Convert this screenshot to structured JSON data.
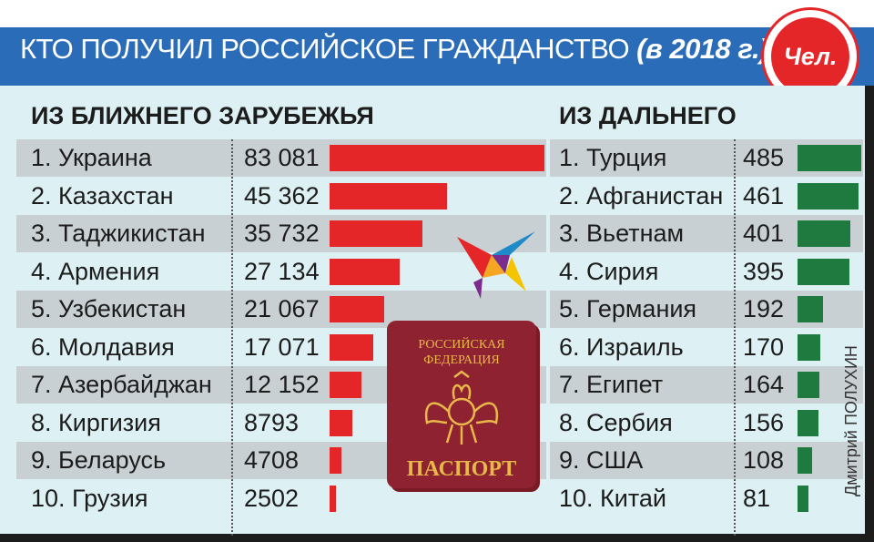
{
  "header": {
    "title_main": "КТО ПОЛУЧИЛ РОССИЙСКОЕ ГРАЖДАНСТВО ",
    "title_year": "(в 2018 г.)",
    "unit_badge": "Чел."
  },
  "colors": {
    "header_bg": "#2a6cb8",
    "near_bar": "#e52629",
    "far_bar": "#1e7a3e",
    "panel_bg": "#ddf0f4",
    "stripe": "#c9d0d4"
  },
  "passport": {
    "line1": "РОССИЙСКАЯ",
    "line2": "ФЕДЕРАЦИЯ",
    "label": "ПАСПОРТ"
  },
  "credit": "Дмитрий ПОЛУХИН",
  "chart_data": [
    {
      "type": "bar",
      "title": "ИЗ БЛИЖНЕГО ЗАРУБЕЖЬЯ",
      "categories": [
        "1. Украина",
        "2. Казахстан",
        "3. Таджикистан",
        "4. Армения",
        "5. Узбекистан",
        "6. Молдавия",
        "7. Азербайджан",
        "8. Киргизия",
        "9. Беларусь",
        "10. Грузия"
      ],
      "values": [
        83081,
        45362,
        35732,
        27134,
        21067,
        17071,
        12152,
        8793,
        4708,
        2502
      ],
      "value_labels": [
        "83 081",
        "45 362",
        "35 732",
        "27 134",
        "21 067",
        "17 071",
        "12 152",
        "8793",
        "4708",
        "2502"
      ],
      "orientation": "horizontal"
    },
    {
      "type": "bar",
      "title": "ИЗ ДАЛЬНЕГО",
      "categories": [
        "1. Турция",
        "2. Афганистан",
        "3. Вьетнам",
        "4. Сирия",
        "5. Германия",
        "6. Израиль",
        "7. Египет",
        "8. Сербия",
        "9. США",
        "10. Китай"
      ],
      "values": [
        485,
        461,
        401,
        395,
        192,
        170,
        164,
        156,
        108,
        81
      ],
      "value_labels": [
        "485",
        "461",
        "401",
        "395",
        "192",
        "170",
        "164",
        "156",
        "108",
        "81"
      ],
      "orientation": "horizontal"
    }
  ]
}
